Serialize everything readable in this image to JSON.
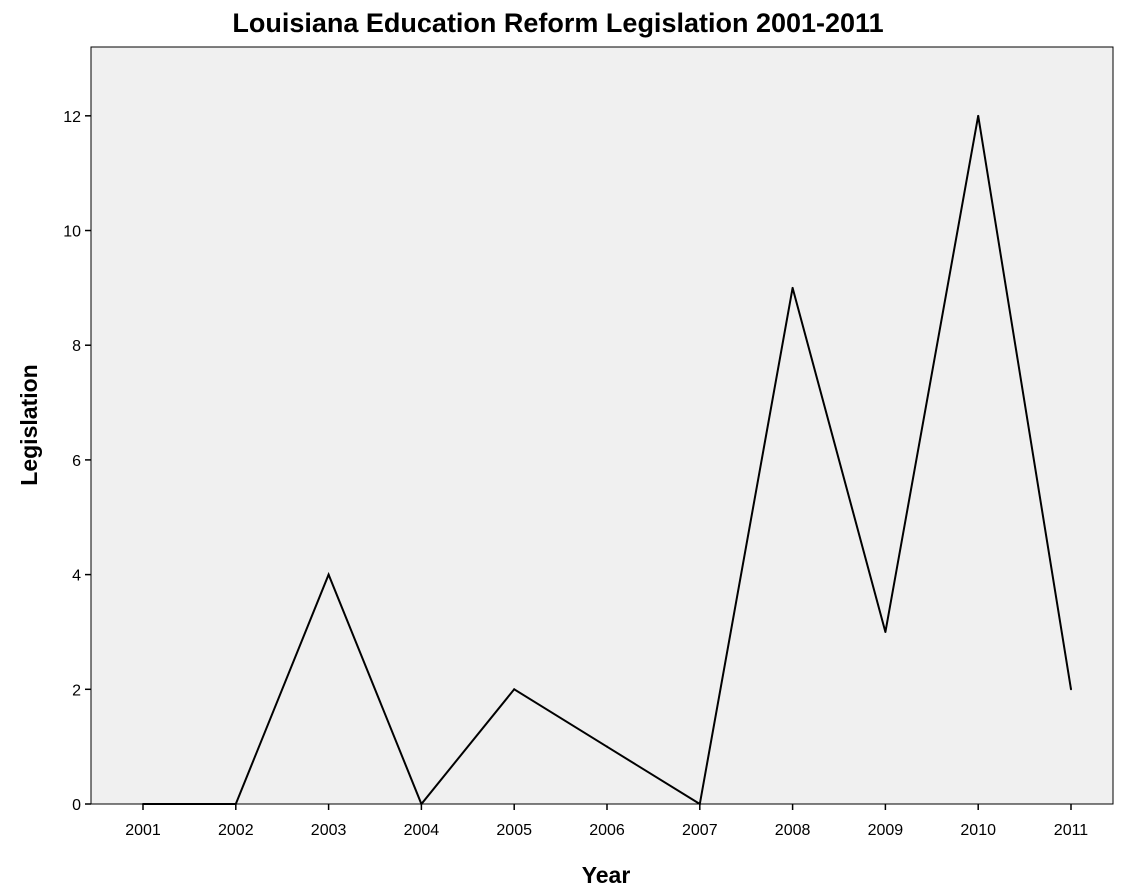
{
  "chart_data": {
    "type": "line",
    "title": "Louisiana Education Reform Legislation 2001-2011",
    "xlabel": "Year",
    "ylabel": "Legislation",
    "categories": [
      "2001",
      "2002",
      "2003",
      "2004",
      "2005",
      "2006",
      "2007",
      "2008",
      "2009",
      "2010",
      "2011"
    ],
    "values": [
      0,
      0,
      4,
      0,
      2,
      1,
      0,
      9,
      3,
      12,
      2
    ],
    "yticks": [
      0,
      2,
      4,
      6,
      8,
      10,
      12
    ],
    "ytick_labels": [
      "0",
      "2",
      "4",
      "6",
      "8",
      "10",
      "12"
    ],
    "ylim": [
      0,
      13.2
    ],
    "grid": false,
    "legend": "none",
    "colors": {
      "plot_background": "#f0f0f0",
      "line": "#000000",
      "axis": "#000000"
    }
  }
}
